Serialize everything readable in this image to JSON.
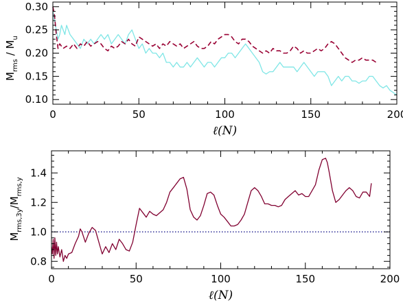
{
  "chart_data": [
    {
      "type": "line",
      "xlabel": "ℓ(N)",
      "ylabel_parts": [
        "M",
        "rms",
        " / M",
        "u"
      ],
      "xlim": [
        0,
        200
      ],
      "ylim": [
        0.09,
        0.31
      ],
      "xticks": [
        0,
        50,
        100,
        150,
        200
      ],
      "yticks": [
        0.1,
        0.15,
        0.2,
        0.25,
        0.3
      ],
      "ytick_labels": [
        "0.10",
        "0.15",
        "0.20",
        "0.25",
        "0.30"
      ],
      "grid": false,
      "series": [
        {
          "style": "solid",
          "color": "#7fe6e6",
          "x": [
            0,
            1,
            2,
            3,
            4,
            5,
            6,
            7,
            8,
            9,
            10,
            12,
            14,
            16,
            18,
            20,
            22,
            24,
            26,
            28,
            30,
            32,
            34,
            36,
            38,
            40,
            42,
            44,
            46,
            48,
            50,
            52,
            54,
            56,
            58,
            60,
            62,
            64,
            66,
            68,
            70,
            72,
            74,
            76,
            78,
            80,
            82,
            84,
            86,
            88,
            90,
            92,
            94,
            96,
            98,
            100,
            102,
            104,
            106,
            108,
            110,
            112,
            114,
            116,
            118,
            120,
            122,
            124,
            126,
            128,
            130,
            132,
            134,
            136,
            138,
            140,
            142,
            144,
            146,
            148,
            150,
            152,
            154,
            156,
            158,
            160,
            162,
            164,
            166,
            168,
            170,
            172,
            174,
            176,
            178,
            180,
            182,
            184,
            186,
            188,
            190,
            192,
            194,
            196,
            198,
            200
          ],
          "y": [
            0.29,
            0.27,
            0.25,
            0.23,
            0.24,
            0.26,
            0.25,
            0.24,
            0.26,
            0.25,
            0.24,
            0.23,
            0.22,
            0.21,
            0.23,
            0.22,
            0.23,
            0.22,
            0.23,
            0.24,
            0.23,
            0.24,
            0.22,
            0.23,
            0.24,
            0.23,
            0.22,
            0.24,
            0.25,
            0.23,
            0.21,
            0.22,
            0.2,
            0.21,
            0.2,
            0.2,
            0.19,
            0.2,
            0.18,
            0.18,
            0.17,
            0.18,
            0.17,
            0.17,
            0.18,
            0.17,
            0.18,
            0.19,
            0.18,
            0.17,
            0.18,
            0.18,
            0.17,
            0.18,
            0.19,
            0.19,
            0.2,
            0.2,
            0.19,
            0.2,
            0.21,
            0.22,
            0.21,
            0.2,
            0.19,
            0.18,
            0.16,
            0.155,
            0.16,
            0.16,
            0.17,
            0.18,
            0.17,
            0.17,
            0.17,
            0.17,
            0.16,
            0.17,
            0.18,
            0.17,
            0.16,
            0.15,
            0.16,
            0.16,
            0.16,
            0.15,
            0.13,
            0.14,
            0.15,
            0.14,
            0.15,
            0.15,
            0.14,
            0.14,
            0.135,
            0.14,
            0.14,
            0.15,
            0.15,
            0.14,
            0.13,
            0.125,
            0.13,
            0.12,
            0.115,
            0.11
          ]
        },
        {
          "style": "dashed",
          "color": "#990033",
          "x": [
            0,
            1,
            2,
            3,
            4,
            6,
            8,
            10,
            12,
            14,
            16,
            18,
            20,
            22,
            24,
            26,
            28,
            30,
            32,
            34,
            36,
            38,
            40,
            42,
            44,
            46,
            48,
            50,
            52,
            54,
            56,
            58,
            60,
            62,
            64,
            66,
            68,
            70,
            72,
            74,
            76,
            78,
            80,
            82,
            84,
            86,
            88,
            90,
            92,
            94,
            96,
            98,
            100,
            102,
            104,
            106,
            108,
            110,
            112,
            114,
            116,
            118,
            120,
            122,
            124,
            126,
            128,
            130,
            132,
            134,
            136,
            138,
            140,
            142,
            144,
            146,
            148,
            150,
            152,
            154,
            156,
            158,
            160,
            162,
            164,
            166,
            168,
            170,
            172,
            174,
            176,
            178,
            180,
            182,
            184,
            186,
            188
          ],
          "y": [
            0.3,
            0.28,
            0.24,
            0.21,
            0.22,
            0.21,
            0.215,
            0.21,
            0.22,
            0.21,
            0.22,
            0.215,
            0.225,
            0.215,
            0.22,
            0.225,
            0.22,
            0.21,
            0.205,
            0.215,
            0.21,
            0.215,
            0.225,
            0.22,
            0.23,
            0.22,
            0.215,
            0.235,
            0.23,
            0.225,
            0.22,
            0.215,
            0.22,
            0.21,
            0.22,
            0.215,
            0.225,
            0.22,
            0.215,
            0.22,
            0.21,
            0.215,
            0.22,
            0.225,
            0.215,
            0.21,
            0.21,
            0.215,
            0.225,
            0.22,
            0.23,
            0.235,
            0.24,
            0.24,
            0.235,
            0.225,
            0.22,
            0.23,
            0.23,
            0.225,
            0.215,
            0.21,
            0.205,
            0.2,
            0.205,
            0.2,
            0.21,
            0.205,
            0.205,
            0.2,
            0.2,
            0.205,
            0.215,
            0.21,
            0.2,
            0.205,
            0.2,
            0.2,
            0.205,
            0.21,
            0.205,
            0.21,
            0.22,
            0.225,
            0.22,
            0.21,
            0.2,
            0.19,
            0.185,
            0.18,
            0.185,
            0.185,
            0.19,
            0.185,
            0.185,
            0.185,
            0.18
          ]
        }
      ]
    },
    {
      "type": "line",
      "xlabel": "ℓ(N)",
      "ylabel_parts": [
        "M",
        "rms,3y",
        "/M",
        "rms,y"
      ],
      "xlim": [
        0,
        200
      ],
      "ylim": [
        0.75,
        1.55
      ],
      "xticks": [
        0,
        50,
        100,
        150,
        200
      ],
      "yticks": [
        0.8,
        1.0,
        1.2,
        1.4
      ],
      "ytick_labels": [
        "0.8",
        "1.0",
        "1.2",
        "1.4"
      ],
      "grid": false,
      "reference_line": {
        "y": 1.0,
        "style": "dotted",
        "color": "#000080"
      },
      "series": [
        {
          "style": "solid",
          "color": "#800030",
          "x": [
            0,
            0.5,
            1,
            1.5,
            2,
            2.5,
            3,
            3.5,
            4,
            5,
            6,
            7,
            8,
            9,
            10,
            12,
            14,
            16,
            17,
            18,
            20,
            22,
            24,
            26,
            28,
            30,
            32,
            34,
            36,
            38,
            40,
            42,
            44,
            46,
            48,
            50,
            52,
            54,
            56,
            58,
            60,
            62,
            64,
            66,
            68,
            70,
            72,
            74,
            76,
            78,
            80,
            82,
            84,
            86,
            88,
            90,
            92,
            94,
            96,
            98,
            100,
            102,
            104,
            106,
            108,
            110,
            112,
            114,
            116,
            118,
            120,
            122,
            124,
            126,
            128,
            130,
            132,
            134,
            136,
            138,
            140,
            142,
            144,
            146,
            148,
            150,
            152,
            154,
            156,
            158,
            160,
            162,
            163,
            164,
            166,
            168,
            170,
            172,
            174,
            176,
            178,
            180,
            182,
            184,
            186,
            188,
            189
          ],
          "y": [
            0.9,
            0.85,
            0.95,
            0.82,
            0.96,
            0.84,
            0.93,
            0.85,
            0.9,
            0.83,
            0.88,
            0.8,
            0.84,
            0.82,
            0.85,
            0.86,
            0.92,
            0.97,
            1.02,
            1.0,
            0.93,
            0.99,
            1.03,
            1.01,
            0.93,
            0.85,
            0.9,
            0.86,
            0.92,
            0.88,
            0.95,
            0.92,
            0.88,
            0.87,
            0.93,
            1.05,
            1.16,
            1.13,
            1.1,
            1.14,
            1.12,
            1.11,
            1.13,
            1.15,
            1.2,
            1.27,
            1.3,
            1.33,
            1.36,
            1.37,
            1.29,
            1.15,
            1.1,
            1.08,
            1.11,
            1.18,
            1.26,
            1.27,
            1.25,
            1.18,
            1.12,
            1.1,
            1.07,
            1.04,
            1.04,
            1.05,
            1.08,
            1.12,
            1.2,
            1.28,
            1.3,
            1.28,
            1.24,
            1.19,
            1.19,
            1.18,
            1.18,
            1.17,
            1.18,
            1.22,
            1.24,
            1.26,
            1.28,
            1.25,
            1.26,
            1.24,
            1.24,
            1.28,
            1.32,
            1.42,
            1.49,
            1.5,
            1.47,
            1.41,
            1.28,
            1.2,
            1.22,
            1.25,
            1.28,
            1.3,
            1.28,
            1.24,
            1.23,
            1.27,
            1.27,
            1.24,
            1.33
          ]
        }
      ]
    }
  ]
}
